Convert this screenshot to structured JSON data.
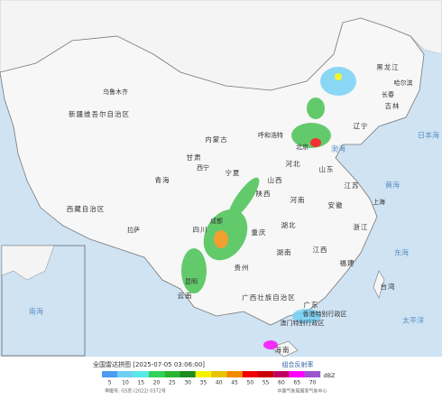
{
  "header": {
    "title": "全国雷达拼图 [2025-07-05 03:06:00]",
    "product": "组合反射率",
    "unit": "dBZ",
    "approval": "审图号: GS京 (2022) 0372号",
    "source": "中国气象局国家气象中心"
  },
  "legend": {
    "values": [
      5,
      10,
      15,
      20,
      25,
      30,
      35,
      40,
      45,
      50,
      55,
      60,
      65,
      70
    ],
    "colors": [
      "#4b9cf2",
      "#6ed0f5",
      "#59e8e8",
      "#2fd25a",
      "#2ab530",
      "#1f8c1e",
      "#f5f200",
      "#e8c400",
      "#f08a00",
      "#f20000",
      "#c80000",
      "#c00060",
      "#ff00ff",
      "#9955cc"
    ]
  },
  "regions": [
    "新疆维吾尔自治区",
    "西藏自治区",
    "青海",
    "内蒙古",
    "黑龙江",
    "吉林",
    "辽宁",
    "河北",
    "山西",
    "山东",
    "河南",
    "陕西",
    "宁夏",
    "四川",
    "湖北",
    "安徽",
    "江苏",
    "浙江",
    "湖南",
    "江西",
    "福建",
    "贵州",
    "云南",
    "广西壮族自治区",
    "广东",
    "海南",
    "台湾",
    "甘肃",
    "重庆"
  ],
  "cities": [
    "乌鲁木齐",
    "拉萨",
    "西宁",
    "呼和浩特",
    "哈尔滨",
    "长春",
    "北京",
    "昆明",
    "成都",
    "上海",
    "香港特别行政区",
    "澳门特别行政区"
  ],
  "seas": [
    "渤海",
    "黄海",
    "东海",
    "太平洋",
    "日本海",
    "南海"
  ]
}
